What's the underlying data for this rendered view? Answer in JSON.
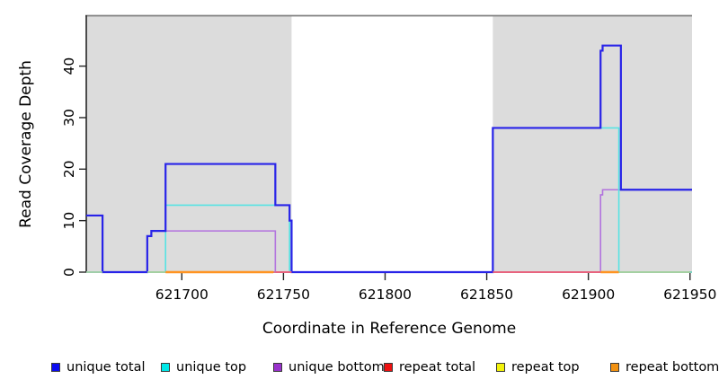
{
  "chart_data": {
    "type": "line",
    "step_type": "hv",
    "title": "",
    "xlabel": "Coordinate in Reference Genome",
    "ylabel": "Read Coverage Depth",
    "xlim": [
      621653,
      621951
    ],
    "ylim": [
      0,
      49.7
    ],
    "x_ticks": [
      621700,
      621750,
      621800,
      621850,
      621900,
      621950
    ],
    "y_ticks": [
      0,
      10,
      20,
      30,
      40
    ],
    "grid": "off",
    "shaded_regions": [
      {
        "name": "left-gray-region",
        "x1": 621653,
        "x2": 621754,
        "color": "#dcdcdc"
      },
      {
        "name": "right-gray-region",
        "x1": 621853,
        "x2": 621951,
        "color": "#dcdcdc"
      }
    ],
    "series": [
      {
        "name": "unique total",
        "color": "#2823e8",
        "width": 2.2,
        "points": [
          [
            621653,
            11
          ],
          [
            621661,
            0
          ],
          [
            621683,
            7
          ],
          [
            621685,
            8
          ],
          [
            621692,
            21
          ],
          [
            621746,
            13
          ],
          [
            621753,
            10
          ],
          [
            621754,
            0
          ],
          [
            621853,
            28
          ],
          [
            621906,
            43
          ],
          [
            621907,
            44
          ],
          [
            621916,
            16
          ]
        ]
      },
      {
        "name": "unique top",
        "color": "#57e3e3",
        "width": 1.6,
        "points": [
          [
            621653,
            0
          ],
          [
            621692,
            13
          ],
          [
            621753,
            0
          ],
          [
            621853,
            28
          ],
          [
            621915,
            0
          ]
        ]
      },
      {
        "name": "unique bottom",
        "color": "#b273de",
        "width": 1.6,
        "points": [
          [
            621653,
            0
          ],
          [
            621683,
            7
          ],
          [
            621685,
            8
          ],
          [
            621746,
            0
          ],
          [
            621906,
            15
          ],
          [
            621907,
            16
          ]
        ]
      },
      {
        "name": "repeat total",
        "color": "#e25874",
        "width": 1.6,
        "points": [
          [
            621653,
            0
          ]
        ]
      },
      {
        "name": "repeat top",
        "color": "#f0f000",
        "width": 1.6,
        "points": [
          [
            621653,
            0
          ]
        ]
      },
      {
        "name": "repeat bottom",
        "color": "#ff9421",
        "width": 1.6,
        "points": [
          [
            621653,
            0
          ]
        ]
      }
    ],
    "baseline_overlays": [
      {
        "x1": 621653,
        "x2": 621661,
        "color": "#a5d6a2",
        "width": 1.6
      },
      {
        "x1": 621683,
        "x2": 621692,
        "color": "#a5d6a2",
        "width": 1.6
      },
      {
        "x1": 621692,
        "x2": 621745,
        "color": "#ff9421",
        "width": 2.4
      },
      {
        "x1": 621746,
        "x2": 621754,
        "color": "#e8637e",
        "width": 2.0
      },
      {
        "x1": 621853,
        "x2": 621906,
        "color": "#e8637e",
        "width": 2.0
      },
      {
        "x1": 621906,
        "x2": 621915,
        "color": "#ff9421",
        "width": 2.4
      },
      {
        "x1": 621915,
        "x2": 621950,
        "color": "#a5d6a2",
        "width": 1.6
      }
    ],
    "legend": {
      "position": "bottom",
      "items": [
        {
          "label": "unique total",
          "swatch": "#0b0bf0"
        },
        {
          "label": "unique top",
          "swatch": "#00e8e8"
        },
        {
          "label": "unique bottom",
          "swatch": "#9932cc"
        },
        {
          "label": "repeat total",
          "swatch": "#ee1111"
        },
        {
          "label": "repeat top",
          "swatch": "#f2f20a"
        },
        {
          "label": "repeat bottom",
          "swatch": "#f29111"
        }
      ]
    }
  }
}
